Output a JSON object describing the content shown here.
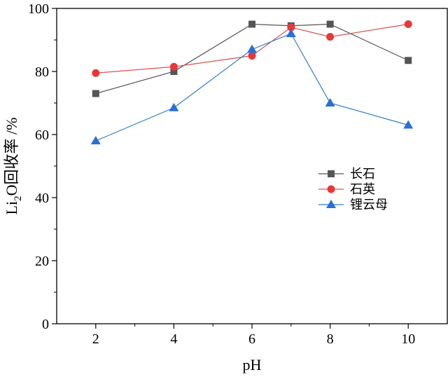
{
  "chart_data": {
    "type": "line",
    "xlabel": "pH",
    "ylabel": "Li",
    "ylabel_subscript": "2",
    "ylabel_suffix": "O回收率 /%",
    "xlim": [
      1,
      11
    ],
    "ylim": [
      0,
      100
    ],
    "x_ticks": [
      2,
      4,
      6,
      8,
      10
    ],
    "y_ticks": [
      0,
      20,
      40,
      60,
      80,
      100
    ],
    "legend_position": "center-right",
    "series": [
      {
        "name": "长石",
        "marker": "square",
        "color": "#555555",
        "line_color": "#555555",
        "x": [
          2,
          4,
          6,
          7,
          8,
          10
        ],
        "values": [
          73,
          80,
          95,
          94.5,
          95,
          83.5
        ]
      },
      {
        "name": "石英",
        "marker": "circle",
        "color": "#e8373a",
        "line_color": "#d9534f",
        "x": [
          2,
          4,
          6,
          7,
          8,
          10
        ],
        "values": [
          79.5,
          81.5,
          85,
          94,
          91,
          95
        ]
      },
      {
        "name": "锂云母",
        "marker": "triangle",
        "color": "#2a6fd6",
        "line_color": "#2f7fc6",
        "x": [
          2,
          4,
          6,
          7,
          8,
          10
        ],
        "values": [
          58,
          68.5,
          87,
          92,
          70,
          63
        ]
      }
    ]
  }
}
